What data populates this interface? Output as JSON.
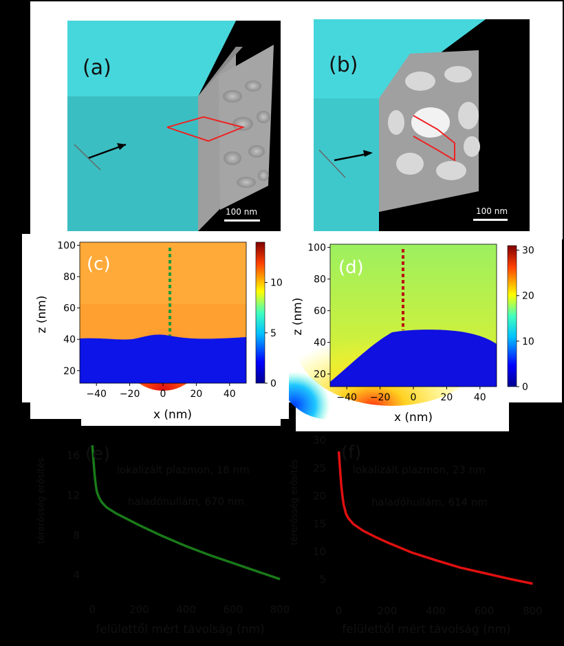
{
  "panels": {
    "a": {
      "label": "(a)",
      "scalebar": "100 nm"
    },
    "b": {
      "label": "(b)",
      "scalebar": "100 nm"
    },
    "c": {
      "label": "(c)",
      "xlabel": "x (nm)",
      "ylabel": "z (nm)",
      "xticks": [
        "-40",
        "-20",
        "0",
        "20",
        "40"
      ],
      "yticks": [
        "20",
        "40",
        "60",
        "80",
        "100"
      ],
      "colorbar_ticks": [
        "0",
        "5",
        "10"
      ]
    },
    "d": {
      "label": "(d)",
      "xlabel": "x (nm)",
      "ylabel": "z (nm)",
      "xticks": [
        "-40",
        "-20",
        "0",
        "20",
        "40"
      ],
      "yticks": [
        "20",
        "40",
        "60",
        "80",
        "100"
      ],
      "colorbar_ticks": [
        "0",
        "10",
        "20",
        "30"
      ]
    },
    "e": {
      "label": "(e)",
      "xlabel": "felülettől mért távolság (nm)",
      "ylabel": "térerősség erősítés",
      "xticks": [
        "0",
        "200",
        "400",
        "600",
        "800"
      ],
      "yticks": [
        "4",
        "8",
        "12",
        "16"
      ],
      "annotations": [
        "lokalizált plazmon, 18 nm",
        "haladóhullám, 670 nm"
      ]
    },
    "f": {
      "label": "(f)",
      "xlabel": "felülettől mért távolság (nm)",
      "ylabel": "térerősség erősítés",
      "xticks": [
        "0",
        "200",
        "400",
        "600",
        "800"
      ],
      "yticks": [
        "5",
        "10",
        "15",
        "20",
        "25",
        "30"
      ],
      "annotations": [
        "lokalizált plazmon, 23 nm",
        "haladóhullám, 614 nm"
      ]
    }
  },
  "chart_data": [
    {
      "type": "heatmap",
      "panel": "c",
      "xlim": [
        -50,
        50
      ],
      "ylim": [
        12,
        102
      ],
      "clim": [
        0,
        14
      ]
    },
    {
      "type": "heatmap",
      "panel": "d",
      "xlim": [
        -50,
        50
      ],
      "ylim": [
        12,
        102
      ],
      "clim": [
        0,
        31
      ]
    },
    {
      "type": "line",
      "panel": "e",
      "xlim": [
        -30,
        850
      ],
      "ylim": [
        2,
        17.5
      ],
      "color": "#1a7a1a",
      "x": [
        0,
        5,
        10,
        15,
        20,
        30,
        40,
        60,
        100,
        150,
        200,
        300,
        400,
        500,
        600,
        700,
        800
      ],
      "y": [
        17,
        15.5,
        14,
        13,
        12.3,
        11.7,
        11.3,
        10.8,
        10.2,
        9.6,
        9.0,
        7.9,
        6.9,
        6.0,
        5.2,
        4.4,
        3.6
      ]
    },
    {
      "type": "line",
      "panel": "f",
      "xlim": [
        -30,
        850
      ],
      "ylim": [
        2,
        31
      ],
      "color": "#e01010",
      "x": [
        0,
        5,
        10,
        15,
        20,
        30,
        40,
        60,
        100,
        150,
        200,
        300,
        400,
        500,
        600,
        700,
        800
      ],
      "y": [
        28,
        25,
        22,
        20,
        18.5,
        16.8,
        16,
        15,
        13.8,
        12.7,
        11.7,
        9.9,
        8.5,
        7.2,
        6.2,
        5.2,
        4.3
      ]
    }
  ]
}
